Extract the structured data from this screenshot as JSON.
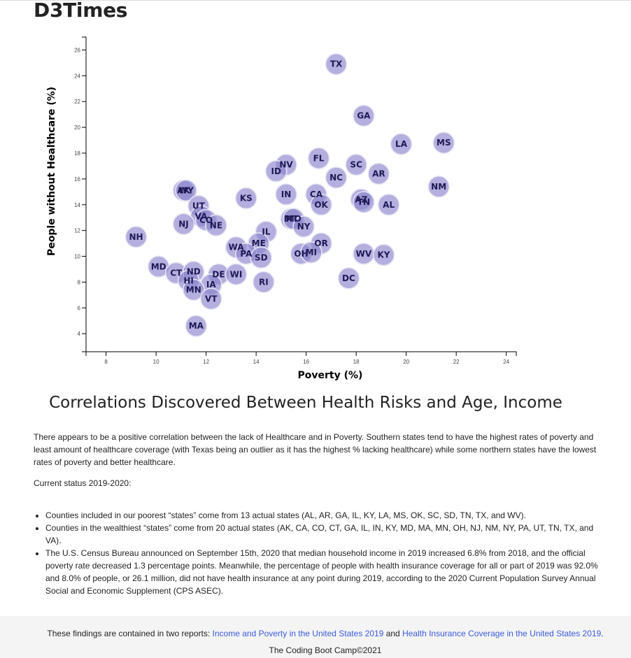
{
  "brand": "D3Times",
  "chart_data": {
    "type": "scatter",
    "xlabel": "Poverty (%)",
    "ylabel": "People without Healthcare (%)",
    "xlim": [
      7.2,
      24.4
    ],
    "ylim": [
      2.6,
      27
    ],
    "x_ticks": [
      8,
      10,
      12,
      14,
      16,
      18,
      20,
      22,
      24
    ],
    "y_ticks": [
      4,
      6,
      8,
      10,
      12,
      14,
      16,
      18,
      20,
      22,
      24,
      26
    ],
    "marker_color": "#8c84cc",
    "points": [
      {
        "abbr": "TX",
        "x": 17.2,
        "y": 24.9
      },
      {
        "abbr": "GA",
        "x": 18.3,
        "y": 20.9
      },
      {
        "abbr": "LA",
        "x": 19.8,
        "y": 18.7
      },
      {
        "abbr": "MS",
        "x": 21.5,
        "y": 18.8
      },
      {
        "abbr": "FL",
        "x": 16.5,
        "y": 17.6
      },
      {
        "abbr": "SC",
        "x": 18.0,
        "y": 17.1
      },
      {
        "abbr": "NV",
        "x": 15.2,
        "y": 17.1
      },
      {
        "abbr": "ID",
        "x": 14.8,
        "y": 16.6
      },
      {
        "abbr": "AR",
        "x": 18.9,
        "y": 16.4
      },
      {
        "abbr": "NC",
        "x": 17.2,
        "y": 16.1
      },
      {
        "abbr": "NM",
        "x": 21.3,
        "y": 15.4
      },
      {
        "abbr": "AK",
        "x": 11.1,
        "y": 15.1
      },
      {
        "abbr": "WY",
        "x": 11.2,
        "y": 15.1
      },
      {
        "abbr": "IN",
        "x": 15.2,
        "y": 14.8
      },
      {
        "abbr": "CA",
        "x": 16.4,
        "y": 14.8
      },
      {
        "abbr": "KS",
        "x": 13.6,
        "y": 14.5
      },
      {
        "abbr": "AZ",
        "x": 18.2,
        "y": 14.4
      },
      {
        "abbr": "TN",
        "x": 18.3,
        "y": 14.2
      },
      {
        "abbr": "AL",
        "x": 19.3,
        "y": 14.0
      },
      {
        "abbr": "OK",
        "x": 16.6,
        "y": 14.0
      },
      {
        "abbr": "UT",
        "x": 11.7,
        "y": 13.9
      },
      {
        "abbr": "VA",
        "x": 11.8,
        "y": 13.1
      },
      {
        "abbr": "CO",
        "x": 12.0,
        "y": 12.8
      },
      {
        "abbr": "MT",
        "x": 15.4,
        "y": 12.9
      },
      {
        "abbr": "MO",
        "x": 15.5,
        "y": 12.9
      },
      {
        "abbr": "NJ",
        "x": 11.1,
        "y": 12.5
      },
      {
        "abbr": "NE",
        "x": 12.4,
        "y": 12.4
      },
      {
        "abbr": "NY",
        "x": 15.9,
        "y": 12.3
      },
      {
        "abbr": "IL",
        "x": 14.4,
        "y": 11.9
      },
      {
        "abbr": "NH",
        "x": 9.2,
        "y": 11.5
      },
      {
        "abbr": "OR",
        "x": 16.6,
        "y": 11.0
      },
      {
        "abbr": "ME",
        "x": 14.1,
        "y": 11.0
      },
      {
        "abbr": "WA",
        "x": 13.2,
        "y": 10.7
      },
      {
        "abbr": "OH",
        "x": 15.8,
        "y": 10.2
      },
      {
        "abbr": "MI",
        "x": 16.2,
        "y": 10.3
      },
      {
        "abbr": "WV",
        "x": 18.3,
        "y": 10.2
      },
      {
        "abbr": "KY",
        "x": 19.1,
        "y": 10.1
      },
      {
        "abbr": "PA",
        "x": 13.6,
        "y": 10.2
      },
      {
        "abbr": "SD",
        "x": 14.2,
        "y": 9.9
      },
      {
        "abbr": "MD",
        "x": 10.1,
        "y": 9.2
      },
      {
        "abbr": "CT",
        "x": 10.8,
        "y": 8.7
      },
      {
        "abbr": "ND",
        "x": 11.5,
        "y": 8.8
      },
      {
        "abbr": "DE",
        "x": 12.5,
        "y": 8.6
      },
      {
        "abbr": "WI",
        "x": 13.2,
        "y": 8.6
      },
      {
        "abbr": "DC",
        "x": 17.7,
        "y": 8.3
      },
      {
        "abbr": "HI",
        "x": 11.3,
        "y": 8.1
      },
      {
        "abbr": "RI",
        "x": 14.3,
        "y": 8.0
      },
      {
        "abbr": "IA",
        "x": 12.2,
        "y": 7.8
      },
      {
        "abbr": "MN",
        "x": 11.5,
        "y": 7.4
      },
      {
        "abbr": "VT",
        "x": 12.2,
        "y": 6.7
      },
      {
        "abbr": "MA",
        "x": 11.6,
        "y": 4.6
      }
    ]
  },
  "article": {
    "title": "Correlations Discovered Between Health Risks and Age, Income",
    "paragraph1": "There appears to be a positive correlation between the lack of Healthcare and in Poverty. Southern states tend to have the highest rates of poverty and least amount of healthcare coverage (with Texas being an outlier as it has the highest % lacking healthcare) while some northern states have the lowest rates of poverty and better healthcare.",
    "paragraph2": "Current status 2019-2020:",
    "bullets": [
      "Counties included in our poorest “states” come from 13 actual states (AL, AR, GA, IL, KY, LA, MS, OK, SC, SD, TN, TX, and WV).",
      "Counties in the wealthiest “states” come from 20 actual states (AK, CA, CO, CT, GA, IL, IN, KY, MD, MA, MN, OH, NJ, NM, NY, PA, UT, TN, TX, and VA).",
      "The U.S. Census Bureau announced on September 15th, 2020 that median household income in 2019 increased 6.8% from 2018, and the official poverty rate decreased 1.3 percentage points. Meanwhile, the percentage of people with health insurance coverage for all or part of 2019 was 92.0% and 8.0% of people, or 26.1 million, did not have health insurance at any point during 2019, according to the 2020 Current Population Survey Annual Social and Economic Supplement (CPS ASEC)."
    ]
  },
  "footer": {
    "prefix": "These findings are contained in two reports: ",
    "link1": "Income and Poverty in the United States 2019",
    "conjunction": " and ",
    "link2": "Health Insurance Coverage in the United States 2019",
    "suffix": ".",
    "copyright": "The Coding Boot Camp©2021"
  }
}
